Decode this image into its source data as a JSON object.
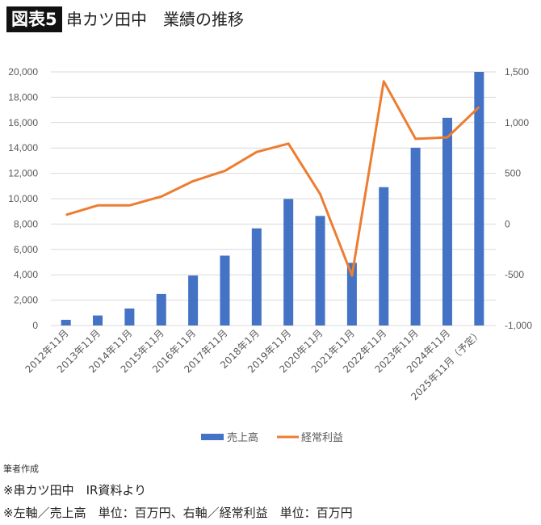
{
  "header": {
    "badge": "図表5",
    "title": "串カツ田中　業績の推移"
  },
  "chart_data": {
    "type": "bar+line",
    "categories": [
      "2012年11月",
      "2013年11月",
      "2014年11月",
      "2015年11月",
      "2016年11月",
      "2017年11月",
      "2018年1月",
      "2019年11月",
      "2020年11月",
      "2021年11月",
      "2022年11月",
      "2023年11月",
      "2024年11月",
      "2025年11月（予定）"
    ],
    "series": [
      {
        "name": "売上高",
        "type": "bar",
        "axis": "left",
        "color": "#4472C4",
        "values": [
          450,
          790,
          1340,
          2490,
          3940,
          5510,
          7660,
          9980,
          8640,
          4940,
          10910,
          14020,
          16380,
          20000
        ]
      },
      {
        "name": "経常利益",
        "type": "line",
        "axis": "right",
        "color": "#ED7D31",
        "values": [
          90,
          184,
          184,
          271,
          423,
          524,
          710,
          793,
          295,
          -508,
          1407,
          840,
          854,
          1154
        ]
      }
    ],
    "left_axis": {
      "range": [
        0,
        20000
      ],
      "ticks": [
        "0",
        "2,000",
        "4,000",
        "6,000",
        "8,000",
        "10,000",
        "12,000",
        "14,000",
        "16,000",
        "18,000",
        "20,000"
      ]
    },
    "right_axis": {
      "range": [
        -1000,
        1500
      ],
      "ticks": [
        "-1,000",
        "-500",
        "0",
        "500",
        "1,000",
        "1,500"
      ]
    },
    "grid": true,
    "legend": "bottom"
  },
  "footer": {
    "source": "筆者作成",
    "note1": "※串カツ田中　IR資料より",
    "note2": "※左軸／売上高　単位：百万円、右軸／経常利益　単位：百万円"
  }
}
